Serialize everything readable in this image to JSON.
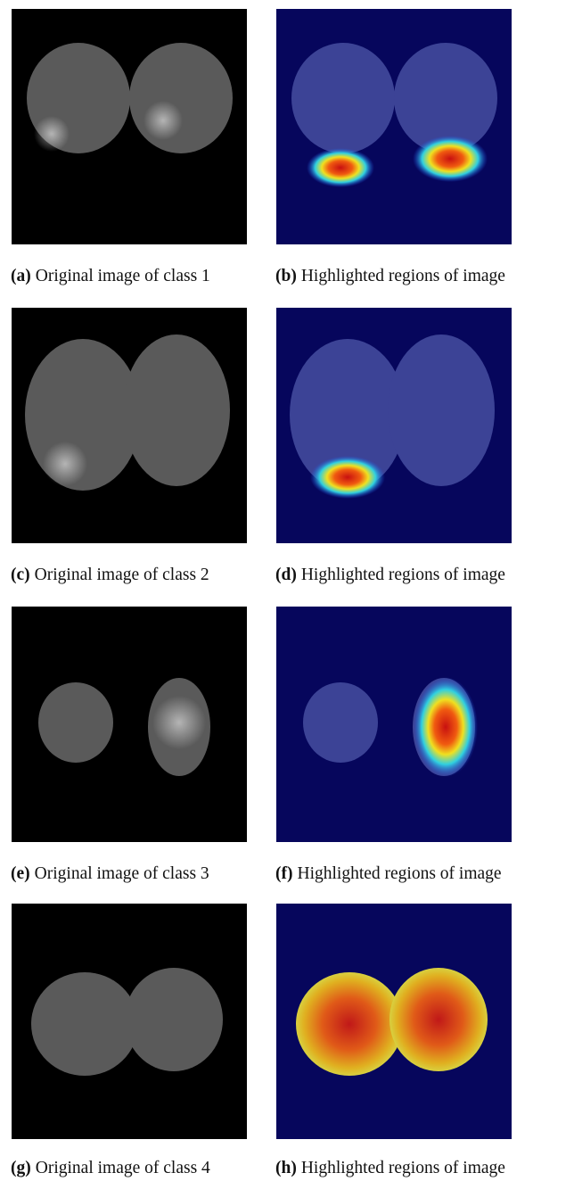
{
  "panels": [
    {
      "label": "(a)",
      "caption": "Original image of class 1"
    },
    {
      "label": "(b)",
      "caption": "Highlighted regions of image"
    },
    {
      "label": "(c)",
      "caption": "Original image of class 2"
    },
    {
      "label": "(d)",
      "caption": "Highlighted regions of image"
    },
    {
      "label": "(e)",
      "caption": "Original image of class 3"
    },
    {
      "label": "(f)",
      "caption": "Highlighted regions of image"
    },
    {
      "label": "(g)",
      "caption": "Original image of class 4"
    },
    {
      "label": "(h)",
      "caption": "Highlighted regions of image"
    }
  ]
}
